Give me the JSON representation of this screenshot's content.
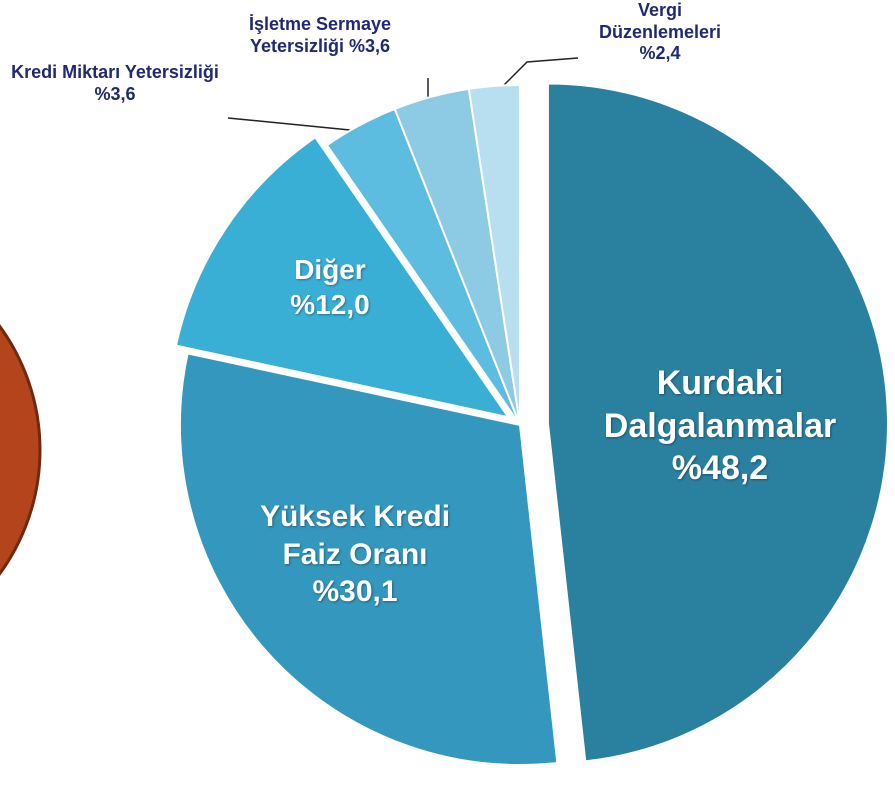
{
  "chart_data": {
    "type": "pie",
    "categories": [
      "Kurdaki Dalgalanmalar",
      "Yüksek Kredi Faiz Oranı",
      "Diğer",
      "Kredi Miktarı Yetersizliği",
      "İşletme Sermaye Yetersizliği",
      "Vergi Düzenlemeleri"
    ],
    "values": [
      48.2,
      30.1,
      12.0,
      3.6,
      3.6,
      2.4
    ],
    "value_labels": [
      "%48,2",
      "%30,1",
      "%12,0",
      "%3,6",
      "%3,6",
      "%2,4"
    ],
    "colors": [
      "#2a809f",
      "#3497bd",
      "#3aafd6",
      "#5cbde0",
      "#8ccbe3",
      "#b8dff0"
    ]
  }
}
